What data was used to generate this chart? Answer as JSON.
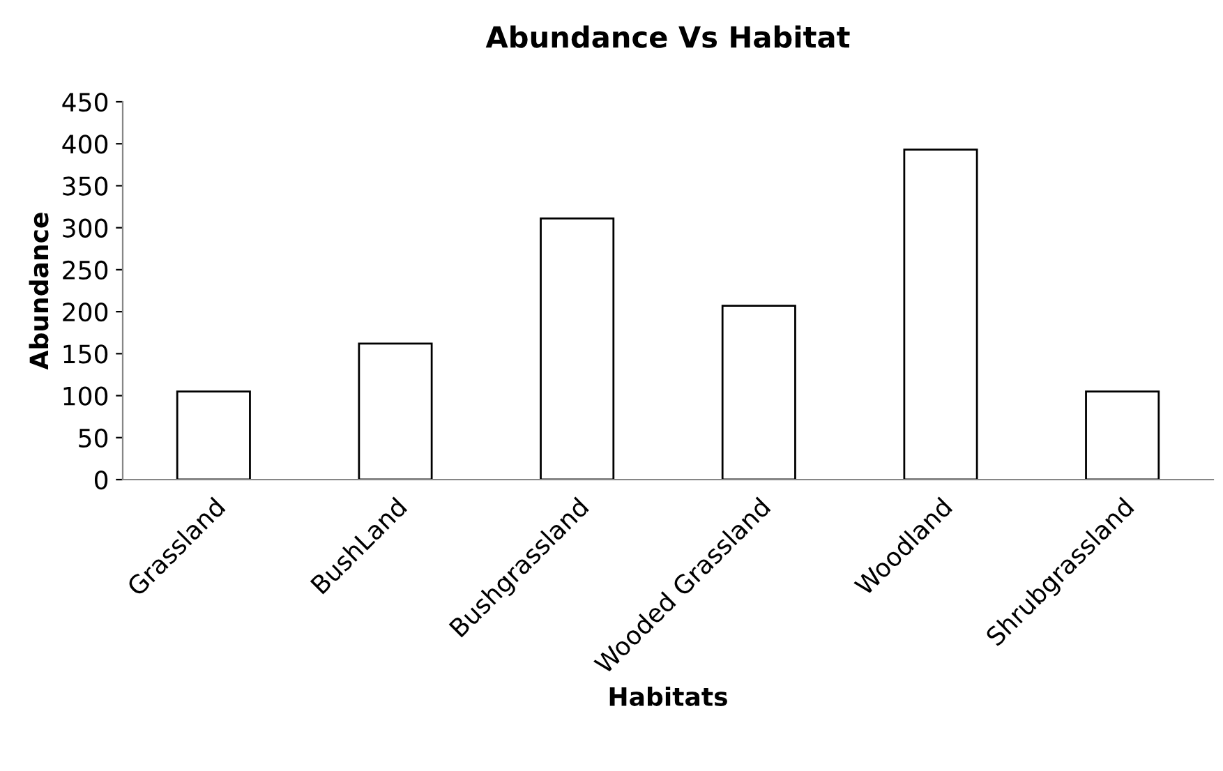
{
  "chart_data": {
    "type": "bar",
    "title": "Abundance Vs Habitat",
    "xlabel": "Habitats",
    "ylabel": "Abundance",
    "categories": [
      "Grassland",
      "BushLand",
      "Bushgrassland",
      "Wooded Grassland",
      "Woodland",
      "Shrubgrassland"
    ],
    "values": [
      105,
      162,
      311,
      207,
      393,
      105
    ],
    "color": "#ffffff",
    "ylim": [
      0,
      450
    ],
    "yticks": [
      0,
      50,
      100,
      150,
      200,
      250,
      300,
      350,
      400,
      450
    ],
    "grid": false
  }
}
